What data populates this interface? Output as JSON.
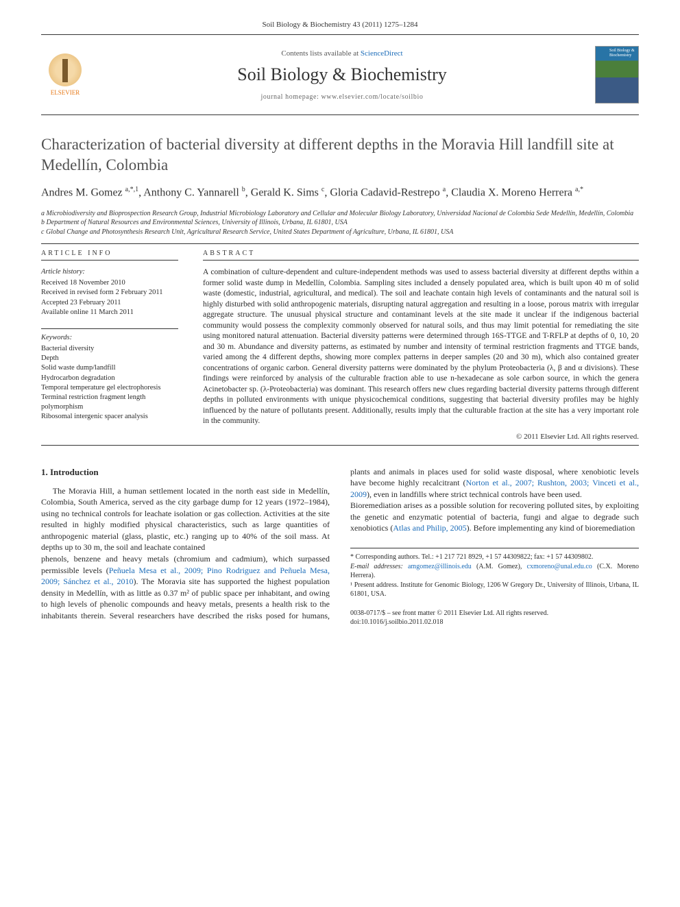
{
  "journal_ref": "Soil Biology & Biochemistry 43 (2011) 1275–1284",
  "masthead": {
    "contents_prefix": "Contents lists available at ",
    "contents_link": "ScienceDirect",
    "journal_title": "Soil Biology & Biochemistry",
    "homepage_label": "journal homepage: www.elsevier.com/locate/soilbio",
    "publisher_name": "ELSEVIER",
    "publisher_color": "#e67817",
    "cover_colors": [
      "#2874a6",
      "#4b7f3b",
      "#3b5a85"
    ]
  },
  "article": {
    "title": "Characterization of bacterial diversity at different depths in the Moravia Hill landfill site at Medellín, Colombia",
    "authors_html": "Andres M. Gomez <sup>a,*,1</sup>, Anthony C. Yannarell <sup>b</sup>, Gerald K. Sims <sup>c</sup>, Gloria Cadavid-Restrepo <sup>a</sup>, Claudia X. Moreno Herrera <sup>a,*</sup>",
    "affiliations": [
      "a Microbiodiversity and Bioprospection Research Group, Industrial Microbiology Laboratory and Cellular and Molecular Biology Laboratory, Universidad Nacional de Colombia Sede Medellín, Medellín, Colombia",
      "b Department of Natural Resources and Environmental Sciences, University of Illinois, Urbana, IL 61801, USA",
      "c Global Change and Photosynthesis Research Unit, Agricultural Research Service, United States Department of Agriculture, Urbana, IL 61801, USA"
    ]
  },
  "article_info": {
    "heading": "ARTICLE INFO",
    "history_heading": "Article history:",
    "history": [
      "Received 18 November 2010",
      "Received in revised form 2 February 2011",
      "Accepted 23 February 2011",
      "Available online 11 March 2011"
    ],
    "keywords_heading": "Keywords:",
    "keywords": [
      "Bacterial diversity",
      "Depth",
      "Solid waste dump/landfill",
      "Hydrocarbon degradation",
      "Temporal temperature gel electrophoresis",
      "Terminal restriction fragment length polymorphism",
      "Ribosomal intergenic spacer analysis"
    ]
  },
  "abstract": {
    "heading": "ABSTRACT",
    "text": "A combination of culture-dependent and culture-independent methods was used to assess bacterial diversity at different depths within a former solid waste dump in Medellín, Colombia. Sampling sites included a densely populated area, which is built upon 40 m of solid waste (domestic, industrial, agricultural, and medical). The soil and leachate contain high levels of contaminants and the natural soil is highly disturbed with solid anthropogenic materials, disrupting natural aggregation and resulting in a loose, porous matrix with irregular aggregate structure. The unusual physical structure and contaminant levels at the site made it unclear if the indigenous bacterial community would possess the complexity commonly observed for natural soils, and thus may limit potential for remediating the site using monitored natural attenuation. Bacterial diversity patterns were determined through 16S-TTGE and T-RFLP at depths of 0, 10, 20 and 30 m. Abundance and diversity patterns, as estimated by number and intensity of terminal restriction fragments and TTGE bands, varied among the 4 different depths, showing more complex patterns in deeper samples (20 and 30 m), which also contained greater concentrations of organic carbon. General diversity patterns were dominated by the phylum Proteobacteria (λ, β and α divisions). These findings were reinforced by analysis of the culturable fraction able to use n-hexadecane as sole carbon source, in which the genera Acinetobacter sp. (λ-Proteobacteria) was dominant. This research offers new clues regarding bacterial diversity patterns through different depths in polluted environments with unique physicochemical conditions, suggesting that bacterial diversity profiles may be highly influenced by the nature of pollutants present. Additionally, results imply that the culturable fraction at the site has a very important role in the community.",
    "copyright": "© 2011 Elsevier Ltd. All rights reserved."
  },
  "body": {
    "section_heading": "1. Introduction",
    "paragraphs": [
      "The Moravia Hill, a human settlement located in the north east side in Medellín, Colombia, South America, served as the city garbage dump for 12 years (1972–1984), using no technical controls for leachate isolation or gas collection. Activities at the site resulted in highly modified physical characteristics, such as large quantities of anthropogenic material (glass, plastic, etc.) ranging up to 40% of the soil mass. At depths up to 30 m, the soil and leachate contained",
      "phenols, benzene and heavy metals (chromium and cadmium), which surpassed permissible levels (<span class=\"ref\">Peñuela Mesa et al., 2009; Pino Rodriguez and Peñuela Mesa, 2009; Sánchez et al., 2010</span>). The Moravia site has supported the highest population density in Medellín, with as little as 0.37 m² of public space per inhabitant, and owing to high levels of phenolic compounds and heavy metals, presents a health risk to the inhabitants therein. Several researchers have described the risks posed for humans, plants and animals in places used for solid waste disposal, where xenobiotic levels have become highly recalcitrant (<span class=\"ref\">Norton et al., 2007; Rushton, 2003; Vinceti et al., 2009</span>), even in landfills where strict technical controls have been used.",
      "Bioremediation arises as a possible solution for recovering polluted sites, by exploiting the genetic and enzymatic potential of bacteria, fungi and algae to degrade such xenobiotics (<span class=\"ref\">Atlas and Philip, 2005</span>). Before implementing any kind of bioremediation"
    ]
  },
  "footnotes": {
    "corresponding": "* Corresponding authors. Tel.: +1 217 721 8929, +1 57 44309822; fax: +1 57 44309802.",
    "emails_label": "E-mail addresses:",
    "emails": [
      {
        "addr": "amgomez@illinois.edu",
        "who": "(A.M. Gomez)"
      },
      {
        "addr": "cxmoreno@unal.edu.co",
        "who": "(C.X. Moreno Herrera)."
      }
    ],
    "present_address": "¹ Present address. Institute for Genomic Biology, 1206 W Gregory Dr., University of Illinois, Urbana, IL 61801, USA."
  },
  "doi": {
    "line1": "0038-0717/$ – see front matter © 2011 Elsevier Ltd. All rights reserved.",
    "line2": "doi:10.1016/j.soilbio.2011.02.018"
  },
  "colors": {
    "link": "#1a6bb8",
    "publisher": "#e67817",
    "text": "#2a2a2a",
    "rule": "#333333"
  },
  "typography": {
    "body_pt": 12,
    "title_pt": 23,
    "authors_pt": 16,
    "abstract_pt": 11.5,
    "info_pt": 10.5,
    "footnote_pt": 10
  }
}
